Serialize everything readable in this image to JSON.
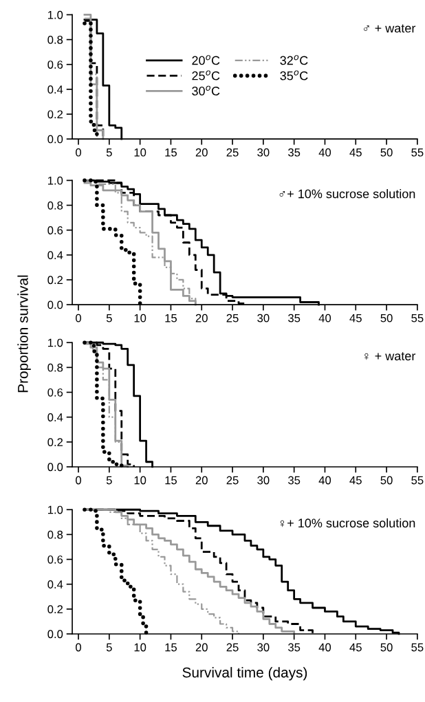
{
  "chart_data": [
    {
      "type": "step",
      "annotations": [
        "♂ + water"
      ],
      "xlim": [
        -1,
        55
      ],
      "ylim": [
        0,
        1
      ],
      "xticks": [
        0,
        5,
        10,
        15,
        20,
        25,
        30,
        35,
        40,
        45,
        50,
        55
      ],
      "yticks": [
        {
          "value": 0,
          "label": "0.0"
        },
        {
          "value": 0.2,
          "label": "0.2"
        },
        {
          "value": 0.4,
          "label": "0.4"
        },
        {
          "value": 0.6,
          "label": "0.6"
        },
        {
          "value": 0.8,
          "label": "0.8"
        },
        {
          "value": 1,
          "label": "1.0"
        }
      ],
      "legend": "center",
      "grid": false,
      "series": [
        {
          "name": "20$^{o}$C",
          "color": "#000000",
          "line_style": "solid",
          "x": [
            1,
            3,
            4,
            5,
            6,
            7
          ],
          "values": [
            0.96,
            0.85,
            0.43,
            0.11,
            0.09,
            0
          ]
        },
        {
          "name": "25$^{o}$C",
          "color": "#000000",
          "line_style": "dashed",
          "x": [
            1,
            2,
            3,
            4
          ],
          "values": [
            0.95,
            0.61,
            0.11,
            0
          ]
        },
        {
          "name": "30$^{o}$C",
          "color": "#999999",
          "line_style": "solid",
          "x": [
            1,
            2,
            3,
            4
          ],
          "values": [
            1,
            0.44,
            0.07,
            0
          ]
        },
        {
          "name": "32$^{o}$C",
          "color": "#999999",
          "line_style": "dashdot",
          "x": [
            1,
            2,
            3
          ],
          "values": [
            0.97,
            0.52,
            0
          ]
        },
        {
          "name": "35$^{o}$C",
          "color": "#000000",
          "line_style": "dotted",
          "x": [
            1,
            2,
            2.5,
            3
          ],
          "values": [
            0.93,
            0.14,
            0.07,
            0
          ]
        }
      ]
    },
    {
      "type": "step",
      "annotations": [
        "♂+ 10% sucrose solution"
      ],
      "xlim": [
        -1,
        55
      ],
      "ylim": [
        0,
        1
      ],
      "xticks": [
        0,
        5,
        10,
        15,
        20,
        25,
        30,
        35,
        40,
        45,
        50,
        55
      ],
      "yticks": [
        {
          "value": 0,
          "label": "0.0"
        },
        {
          "value": 0.2,
          "label": "0.2"
        },
        {
          "value": 0.4,
          "label": "0.4"
        },
        {
          "value": 0.6,
          "label": "0.6"
        },
        {
          "value": 0.8,
          "label": "0.8"
        },
        {
          "value": 1,
          "label": "1.0"
        }
      ],
      "grid": false,
      "series": [
        {
          "color": "#000000",
          "line_style": "solid",
          "x": [
            1,
            3,
            5,
            7,
            8,
            9,
            10,
            13,
            14,
            16,
            17,
            18,
            19,
            20,
            21,
            22,
            23,
            24,
            25,
            36,
            39
          ],
          "values": [
            1,
            0.99,
            0.98,
            0.95,
            0.93,
            0.89,
            0.81,
            0.77,
            0.72,
            0.68,
            0.65,
            0.61,
            0.52,
            0.46,
            0.4,
            0.26,
            0.09,
            0.07,
            0.06,
            0.02,
            0
          ]
        },
        {
          "color": "#000000",
          "line_style": "dashed",
          "x": [
            1,
            6,
            7,
            9,
            10,
            13,
            15,
            16,
            17,
            18,
            19,
            20,
            21,
            24,
            26,
            27
          ],
          "values": [
            1,
            0.98,
            0.9,
            0.8,
            0.75,
            0.72,
            0.66,
            0.62,
            0.5,
            0.4,
            0.28,
            0.13,
            0.08,
            0.03,
            0.01,
            0
          ]
        },
        {
          "color": "#999999",
          "line_style": "solid",
          "x": [
            1,
            2,
            4,
            7,
            8,
            9,
            10,
            12,
            13,
            14,
            15,
            17,
            18,
            19
          ],
          "values": [
            0.98,
            0.96,
            0.92,
            0.88,
            0.84,
            0.8,
            0.75,
            0.58,
            0.45,
            0.35,
            0.12,
            0.07,
            0.03,
            0
          ]
        },
        {
          "color": "#999999",
          "line_style": "dashdot",
          "x": [
            1,
            3,
            6,
            7,
            8,
            9,
            10,
            11,
            12,
            14,
            15,
            16,
            17,
            18,
            19
          ],
          "values": [
            1,
            0.97,
            0.9,
            0.75,
            0.66,
            0.62,
            0.58,
            0.55,
            0.38,
            0.3,
            0.25,
            0.2,
            0.13,
            0.05,
            0
          ]
        },
        {
          "color": "#000000",
          "line_style": "dotted",
          "x": [
            1,
            2,
            3,
            4,
            6,
            7,
            8,
            9,
            10
          ],
          "values": [
            1,
            0.99,
            0.8,
            0.61,
            0.56,
            0.44,
            0.42,
            0.17,
            0
          ]
        }
      ]
    },
    {
      "type": "step",
      "annotations": [
        "♀ + water"
      ],
      "ylabel": "Proportion survival",
      "xlim": [
        -1,
        55
      ],
      "ylim": [
        0,
        1
      ],
      "xticks": [
        0,
        5,
        10,
        15,
        20,
        25,
        30,
        35,
        40,
        45,
        50,
        55
      ],
      "yticks": [
        {
          "value": 0,
          "label": "0.0"
        },
        {
          "value": 0.2,
          "label": "0.2"
        },
        {
          "value": 0.4,
          "label": "0.4"
        },
        {
          "value": 0.6,
          "label": "0.6"
        },
        {
          "value": 0.8,
          "label": "0.8"
        },
        {
          "value": 1,
          "label": "1.0"
        }
      ],
      "grid": false,
      "series": [
        {
          "color": "#000000",
          "line_style": "solid",
          "x": [
            1,
            4,
            6,
            7,
            8,
            9,
            10,
            11,
            12
          ],
          "values": [
            1,
            0.99,
            0.98,
            0.95,
            0.82,
            0.57,
            0.21,
            0.04,
            0
          ]
        },
        {
          "color": "#000000",
          "line_style": "dashed",
          "x": [
            1,
            3,
            4,
            5,
            6,
            7,
            8,
            9
          ],
          "values": [
            1,
            0.98,
            0.95,
            0.79,
            0.45,
            0.1,
            0.02,
            0
          ]
        },
        {
          "color": "#999999",
          "line_style": "solid",
          "x": [
            1,
            2,
            3,
            4,
            5,
            6,
            7,
            8
          ],
          "values": [
            0.99,
            0.96,
            0.84,
            0.79,
            0.54,
            0.21,
            0.01,
            0
          ]
        },
        {
          "color": "#999999",
          "line_style": "dashdot",
          "x": [
            1,
            2,
            3,
            4,
            5,
            6,
            7
          ],
          "values": [
            1,
            0.95,
            0.8,
            0.7,
            0.4,
            0.2,
            0
          ]
        },
        {
          "color": "#000000",
          "line_style": "dotted",
          "x": [
            1,
            2,
            2.5,
            3,
            4,
            5,
            6,
            7
          ],
          "values": [
            1,
            0.98,
            0.93,
            0.55,
            0.12,
            0.04,
            0.02,
            0
          ]
        }
      ]
    },
    {
      "type": "step",
      "annotations": [
        "♀+ 10% sucrose solution"
      ],
      "xlabel": "Survival time (days)",
      "xlim": [
        -1,
        55
      ],
      "ylim": [
        0,
        1
      ],
      "xticks": [
        0,
        5,
        10,
        15,
        20,
        25,
        30,
        35,
        40,
        45,
        50,
        55
      ],
      "yticks": [
        {
          "value": 0,
          "label": "0.0"
        },
        {
          "value": 0.2,
          "label": "0.2"
        },
        {
          "value": 0.4,
          "label": "0.4"
        },
        {
          "value": 0.6,
          "label": "0.6"
        },
        {
          "value": 0.8,
          "label": "0.8"
        },
        {
          "value": 1,
          "label": "1.0"
        }
      ],
      "grid": false,
      "series": [
        {
          "color": "#000000",
          "line_style": "solid",
          "x": [
            1,
            10,
            13,
            16,
            19,
            21,
            23,
            25,
            27,
            28,
            29,
            30,
            31,
            32,
            33,
            34,
            35,
            36,
            38,
            40,
            42,
            43,
            45,
            47,
            49,
            51,
            52
          ],
          "values": [
            1,
            0.99,
            0.97,
            0.95,
            0.9,
            0.87,
            0.83,
            0.8,
            0.75,
            0.71,
            0.68,
            0.62,
            0.6,
            0.55,
            0.42,
            0.35,
            0.28,
            0.25,
            0.21,
            0.18,
            0.14,
            0.1,
            0.06,
            0.04,
            0.03,
            0.01,
            0
          ]
        },
        {
          "color": "#000000",
          "line_style": "dashed",
          "x": [
            1,
            6,
            8,
            10,
            14,
            16,
            18,
            19,
            20,
            22,
            23,
            24,
            25,
            26,
            27,
            28,
            29,
            30,
            32,
            34,
            36,
            38
          ],
          "values": [
            1,
            0.99,
            0.97,
            0.95,
            0.93,
            0.91,
            0.85,
            0.77,
            0.66,
            0.62,
            0.57,
            0.48,
            0.42,
            0.35,
            0.27,
            0.25,
            0.21,
            0.14,
            0.1,
            0.08,
            0.03,
            0
          ]
        },
        {
          "color": "#999999",
          "line_style": "solid",
          "x": [
            1,
            6,
            7,
            8,
            9,
            11,
            12,
            13,
            14,
            15,
            16,
            17,
            18,
            19,
            20,
            21,
            22,
            23,
            24,
            25,
            26,
            27,
            28,
            29,
            30,
            31,
            32,
            33,
            35
          ],
          "values": [
            1,
            0.98,
            0.95,
            0.92,
            0.88,
            0.85,
            0.8,
            0.77,
            0.75,
            0.72,
            0.68,
            0.63,
            0.58,
            0.52,
            0.49,
            0.46,
            0.42,
            0.38,
            0.35,
            0.32,
            0.29,
            0.25,
            0.22,
            0.18,
            0.12,
            0.08,
            0.05,
            0.02,
            0
          ]
        },
        {
          "color": "#999999",
          "line_style": "dashdot",
          "x": [
            1,
            5,
            7,
            8,
            10,
            11,
            12,
            13,
            14,
            15,
            16,
            17,
            18,
            19,
            20,
            21,
            22,
            23,
            24,
            25,
            26
          ],
          "values": [
            1,
            0.98,
            0.93,
            0.88,
            0.81,
            0.75,
            0.68,
            0.62,
            0.55,
            0.48,
            0.4,
            0.34,
            0.28,
            0.24,
            0.2,
            0.16,
            0.13,
            0.08,
            0.05,
            0.02,
            0
          ]
        },
        {
          "color": "#000000",
          "line_style": "dotted",
          "x": [
            1,
            2,
            3,
            4,
            5,
            6,
            7,
            8,
            9,
            10,
            10.5,
            11
          ],
          "values": [
            1,
            0.99,
            0.84,
            0.71,
            0.64,
            0.56,
            0.43,
            0.38,
            0.27,
            0.14,
            0.06,
            0
          ]
        }
      ]
    }
  ]
}
